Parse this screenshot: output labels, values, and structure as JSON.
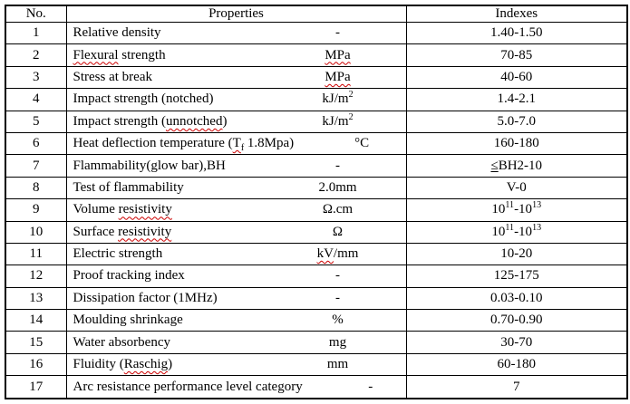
{
  "table": {
    "squiggle_color": "#cc0000",
    "headers": {
      "no": "No.",
      "properties": "Properties",
      "indexes": "Indexes"
    },
    "rows": [
      {
        "no": "1",
        "property": [
          {
            "t": "Relative density"
          }
        ],
        "unit": [
          {
            "t": "-"
          }
        ],
        "index": [
          {
            "t": "1.40-1.50"
          }
        ]
      },
      {
        "no": "2",
        "property": [
          {
            "t": "Flexural",
            "sq": true
          },
          {
            "t": " strength"
          }
        ],
        "unit": [
          {
            "t": "MPa",
            "sq": true
          }
        ],
        "index": [
          {
            "t": "70-85"
          }
        ]
      },
      {
        "no": "3",
        "property": [
          {
            "t": "Stress at break"
          }
        ],
        "unit": [
          {
            "t": "MPa",
            "sq": true
          }
        ],
        "index": [
          {
            "t": "40-60"
          }
        ]
      },
      {
        "no": "4",
        "property": [
          {
            "t": "Impact strength (notched)"
          }
        ],
        "unit": [
          {
            "t": "kJ/m"
          },
          {
            "t": "2",
            "sup": true
          }
        ],
        "index": [
          {
            "t": "1.4-2.1"
          }
        ]
      },
      {
        "no": "5",
        "property": [
          {
            "t": "Impact strength ("
          },
          {
            "t": "unnotched",
            "sq": true
          },
          {
            "t": ")"
          }
        ],
        "unit": [
          {
            "t": "kJ/m"
          },
          {
            "t": "2",
            "sup": true
          }
        ],
        "index": [
          {
            "t": "5.0-7.0"
          }
        ]
      },
      {
        "no": "6",
        "property": [
          {
            "t": "Heat deflection temperature ("
          },
          {
            "t": "T",
            "sq": true
          },
          {
            "t": "f",
            "sub": true,
            "sq": true
          },
          {
            "t": " 1.8Mpa)"
          }
        ],
        "unit": [
          {
            "t": "°C"
          }
        ],
        "index": [
          {
            "t": "160-180"
          }
        ]
      },
      {
        "no": "7",
        "property": [
          {
            "t": "Flammability(glow bar),BH"
          }
        ],
        "unit": [
          {
            "t": "-"
          }
        ],
        "index": [
          {
            "t": "≤",
            "u": true
          },
          {
            "t": "BH2-10"
          }
        ]
      },
      {
        "no": "8",
        "property": [
          {
            "t": "Test of flammability"
          }
        ],
        "unit": [
          {
            "t": "2.0mm"
          }
        ],
        "index": [
          {
            "t": "V-0"
          }
        ]
      },
      {
        "no": "9",
        "property": [
          {
            "t": "Volume "
          },
          {
            "t": "resistivity",
            "sq": true
          }
        ],
        "unit": [
          {
            "t": "Ω.cm"
          }
        ],
        "index": [
          {
            "t": "10"
          },
          {
            "t": "11",
            "sup": true
          },
          {
            "t": "-10"
          },
          {
            "t": "13",
            "sup": true
          }
        ]
      },
      {
        "no": "10",
        "property": [
          {
            "t": "Surface "
          },
          {
            "t": "resistivity",
            "sq": true
          }
        ],
        "unit": [
          {
            "t": "Ω"
          }
        ],
        "index": [
          {
            "t": "10"
          },
          {
            "t": "11",
            "sup": true
          },
          {
            "t": "-10"
          },
          {
            "t": "13",
            "sup": true
          }
        ]
      },
      {
        "no": "11",
        "property": [
          {
            "t": "Electric strength"
          }
        ],
        "unit": [
          {
            "t": "kV",
            "sq": true
          },
          {
            "t": "/mm"
          }
        ],
        "index": [
          {
            "t": "10-20"
          }
        ]
      },
      {
        "no": "12",
        "property": [
          {
            "t": "Proof tracking index"
          }
        ],
        "unit": [
          {
            "t": "-"
          }
        ],
        "index": [
          {
            "t": "125-175"
          }
        ]
      },
      {
        "no": "13",
        "property": [
          {
            "t": "Dissipation factor (1MHz)"
          }
        ],
        "unit": [
          {
            "t": "-"
          }
        ],
        "index": [
          {
            "t": "0.03-0.10"
          }
        ]
      },
      {
        "no": "14",
        "property": [
          {
            "t": "Moulding shrinkage"
          }
        ],
        "unit": [
          {
            "t": "%"
          }
        ],
        "index": [
          {
            "t": "0.70-0.90"
          }
        ]
      },
      {
        "no": "15",
        "property": [
          {
            "t": "Water absorbency"
          }
        ],
        "unit": [
          {
            "t": "mg"
          }
        ],
        "index": [
          {
            "t": "30-70"
          }
        ]
      },
      {
        "no": "16",
        "property": [
          {
            "t": "Fluidity ("
          },
          {
            "t": "Raschig",
            "sq": true
          },
          {
            "t": ")"
          }
        ],
        "unit": [
          {
            "t": "mm"
          }
        ],
        "index": [
          {
            "t": "60-180"
          }
        ]
      },
      {
        "no": "17",
        "property": [
          {
            "t": "Arc resistance performance level category"
          }
        ],
        "unit": [
          {
            "t": "-"
          }
        ],
        "index": [
          {
            "t": "7"
          }
        ]
      }
    ]
  }
}
